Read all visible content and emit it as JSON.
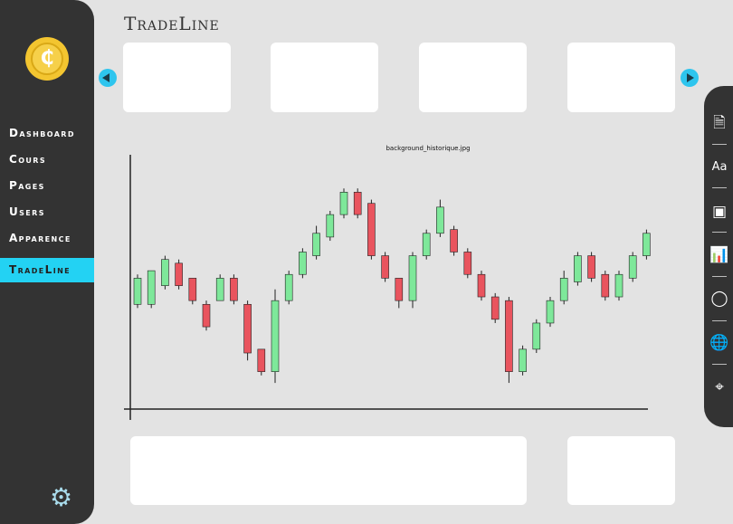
{
  "app": {
    "title": "TradeLine"
  },
  "sidebar": {
    "logo_glyph": "₵",
    "items": [
      {
        "label": "Dashboard",
        "icon": ""
      },
      {
        "label": "Cours"
      },
      {
        "label": "Pages"
      },
      {
        "label": "Users"
      },
      {
        "label": "Apparence"
      },
      {
        "label": "TradeLine",
        "active": true
      }
    ],
    "settings_icon": "gear-icon"
  },
  "chart_image_label": "background_historique.jpg",
  "colors": {
    "up": "#7ee89a",
    "down": "#e9545e",
    "accent": "#23d2f3",
    "sidebar": "#333333"
  },
  "toolbar": {
    "icons": [
      "document-icon",
      "text-font-icon",
      "image-icon",
      "report-chart-icon",
      "user-icon",
      "globe-icon",
      "map-pin-icon"
    ]
  },
  "chart_data": {
    "type": "candlestick",
    "candles": [
      {
        "o": 28,
        "c": 35,
        "h": 36,
        "l": 27
      },
      {
        "o": 28,
        "c": 37,
        "h": 37,
        "l": 27
      },
      {
        "o": 33,
        "c": 40,
        "h": 41,
        "l": 32
      },
      {
        "o": 39,
        "c": 33,
        "h": 40,
        "l": 32
      },
      {
        "o": 35,
        "c": 29,
        "h": 35,
        "l": 28
      },
      {
        "o": 28,
        "c": 22,
        "h": 29,
        "l": 21
      },
      {
        "o": 29,
        "c": 35,
        "h": 36,
        "l": 29
      },
      {
        "o": 35,
        "c": 29,
        "h": 36,
        "l": 28
      },
      {
        "o": 28,
        "c": 15,
        "h": 29,
        "l": 13
      },
      {
        "o": 16,
        "c": 10,
        "h": 16,
        "l": 9
      },
      {
        "o": 10,
        "c": 29,
        "h": 32,
        "l": 7
      },
      {
        "o": 29,
        "c": 36,
        "h": 37,
        "l": 28
      },
      {
        "o": 36,
        "c": 42,
        "h": 43,
        "l": 35
      },
      {
        "o": 41,
        "c": 47,
        "h": 49,
        "l": 40
      },
      {
        "o": 46,
        "c": 52,
        "h": 53,
        "l": 45
      },
      {
        "o": 52,
        "c": 58,
        "h": 59,
        "l": 51
      },
      {
        "o": 58,
        "c": 52,
        "h": 59,
        "l": 51
      },
      {
        "o": 55,
        "c": 41,
        "h": 56,
        "l": 40
      },
      {
        "o": 41,
        "c": 35,
        "h": 42,
        "l": 34
      },
      {
        "o": 35,
        "c": 29,
        "h": 35,
        "l": 27
      },
      {
        "o": 29,
        "c": 41,
        "h": 42,
        "l": 27
      },
      {
        "o": 41,
        "c": 47,
        "h": 48,
        "l": 40
      },
      {
        "o": 47,
        "c": 54,
        "h": 56,
        "l": 46
      },
      {
        "o": 48,
        "c": 42,
        "h": 49,
        "l": 41
      },
      {
        "o": 42,
        "c": 36,
        "h": 43,
        "l": 35
      },
      {
        "o": 36,
        "c": 30,
        "h": 37,
        "l": 29
      },
      {
        "o": 30,
        "c": 24,
        "h": 31,
        "l": 23
      },
      {
        "o": 29,
        "c": 10,
        "h": 30,
        "l": 7
      },
      {
        "o": 10,
        "c": 16,
        "h": 17,
        "l": 9
      },
      {
        "o": 16,
        "c": 23,
        "h": 24,
        "l": 15
      },
      {
        "o": 23,
        "c": 29,
        "h": 30,
        "l": 22
      },
      {
        "o": 29,
        "c": 35,
        "h": 37,
        "l": 28
      },
      {
        "o": 34,
        "c": 41,
        "h": 42,
        "l": 33
      },
      {
        "o": 41,
        "c": 35,
        "h": 42,
        "l": 34
      },
      {
        "o": 36,
        "c": 30,
        "h": 37,
        "l": 29
      },
      {
        "o": 30,
        "c": 36,
        "h": 37,
        "l": 29
      },
      {
        "o": 35,
        "c": 41,
        "h": 42,
        "l": 34
      },
      {
        "o": 41,
        "c": 47,
        "h": 48,
        "l": 40
      }
    ],
    "ylim": [
      0,
      68
    ],
    "grid": false
  }
}
